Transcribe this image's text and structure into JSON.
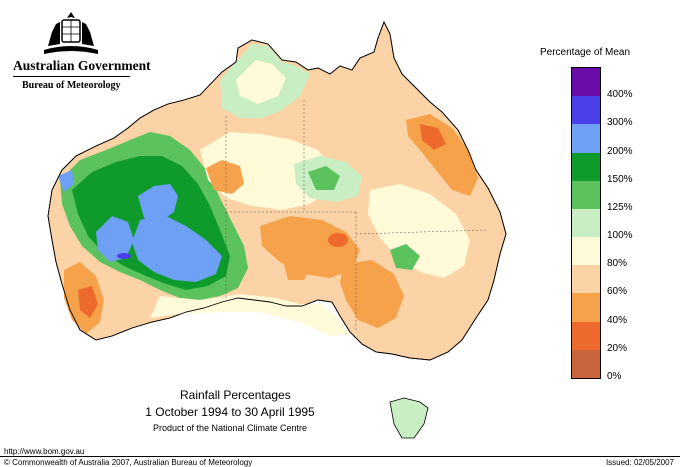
{
  "header": {
    "government": "Australian Government",
    "bureau": "Bureau of Meteorology"
  },
  "legend": {
    "title": "Percentage of Mean",
    "items": [
      {
        "label": "400%",
        "color": "#6a0da8"
      },
      {
        "label": "300%",
        "color": "#4a3fe8"
      },
      {
        "label": "200%",
        "color": "#6ea0f5"
      },
      {
        "label": "150%",
        "color": "#0f9a2c"
      },
      {
        "label": "125%",
        "color": "#5cc25e"
      },
      {
        "label": "100%",
        "color": "#c9eec4"
      },
      {
        "label": "80%",
        "color": "#fffad8"
      },
      {
        "label": "60%",
        "color": "#fbd3a6"
      },
      {
        "label": "40%",
        "color": "#f5a24a"
      },
      {
        "label": "20%",
        "color": "#ee6a2c"
      },
      {
        "label": "0%",
        "color": "#c9653d"
      }
    ]
  },
  "map_title": {
    "line1": "Rainfall Percentages",
    "line2": "1 October 1994 to 30 April 1995",
    "line3": "Product of the National Climate Centre"
  },
  "footer": {
    "url": "http://www.bom.gov.au",
    "copyright": "© Commonwealth of Australia 2007, Australian Bureau of Meteorology",
    "issued": "Issued: 02/05/2007"
  }
}
